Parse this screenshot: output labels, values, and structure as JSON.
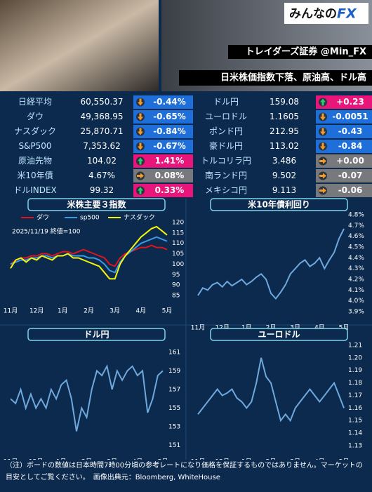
{
  "header": {
    "logo_prefix": "みんなの",
    "logo_mark": "FX",
    "account": "トレイダーズ証券 @Min_FX",
    "headline": "日米株価指数下落、原油高、ドル高"
  },
  "table": {
    "palette": {
      "up": "#e8157a",
      "down": "#1e6fd9",
      "flat": "#77797c"
    },
    "left": [
      {
        "name": "日経平均",
        "value": "60,550.37",
        "change": "-0.44%",
        "trend": "down"
      },
      {
        "name": "ダウ",
        "value": "49,368.95",
        "change": "-0.65%",
        "trend": "down"
      },
      {
        "name": "ナスダック",
        "value": "25,870.71",
        "change": "-0.84%",
        "trend": "down"
      },
      {
        "name": "S&P500",
        "value": "7,353.62",
        "change": "-0.67%",
        "trend": "down"
      },
      {
        "name": "原油先物",
        "value": "104.02",
        "change": "1.41%",
        "trend": "up"
      },
      {
        "name": "米10年債",
        "value": "4.67%",
        "change": "0.08%",
        "trend": "flat"
      },
      {
        "name": "ドルINDEX",
        "value": "99.32",
        "change": "0.33%",
        "trend": "up"
      }
    ],
    "right": [
      {
        "name": "ドル円",
        "value": "159.08",
        "change": "+0.23",
        "trend": "up"
      },
      {
        "name": "ユーロドル",
        "value": "1.1605",
        "change": "-0.0051",
        "trend": "down"
      },
      {
        "name": "ポンド円",
        "value": "212.95",
        "change": "-0.43",
        "trend": "down"
      },
      {
        "name": "豪ドル円",
        "value": "113.02",
        "change": "-0.84",
        "trend": "down"
      },
      {
        "name": "トルコリラ円",
        "value": "3.486",
        "change": "+0.00",
        "trend": "flat"
      },
      {
        "name": "南ランド円",
        "value": "9.502",
        "change": "-0.07",
        "trend": "flat"
      },
      {
        "name": "メキシコ円",
        "value": "9.113",
        "change": "-0.06",
        "trend": "flat"
      }
    ]
  },
  "chart_data": [
    {
      "type": "line",
      "title": "米株主要３指数",
      "note": "2025/11/19 終値=100",
      "categories": [
        "11月",
        null,
        null,
        null,
        null,
        "12月",
        null,
        null,
        null,
        null,
        "1月",
        null,
        null,
        null,
        null,
        "2月",
        null,
        null,
        null,
        null,
        "3月",
        null,
        null,
        null,
        null,
        "4月",
        null,
        null,
        null,
        null,
        "5月"
      ],
      "ylim": [
        82,
        124
      ],
      "yticks": [
        85,
        90,
        95,
        100,
        105,
        110,
        115,
        120
      ],
      "series": [
        {
          "name": "ダウ",
          "color": "#e0141e",
          "values": [
            100,
            102,
            103,
            103,
            104,
            104,
            105,
            105,
            104,
            105,
            106,
            106,
            105,
            106,
            107,
            106,
            105,
            104,
            103,
            100,
            99,
            103,
            105,
            106,
            107,
            108,
            108,
            109,
            108,
            108,
            107
          ]
        },
        {
          "name": "sp500",
          "color": "#3b9ae8",
          "values": [
            100,
            101,
            102,
            102,
            103,
            103,
            104,
            104,
            103,
            104,
            104,
            105,
            104,
            104,
            104,
            103,
            103,
            102,
            100,
            97,
            96,
            101,
            104,
            106,
            108,
            110,
            111,
            112,
            113,
            112,
            111
          ]
        },
        {
          "name": "ナスダック",
          "color": "#f5f50a",
          "values": [
            98,
            102,
            103,
            101,
            103,
            102,
            104,
            103,
            102,
            104,
            104,
            105,
            103,
            103,
            102,
            101,
            100,
            99,
            96,
            93,
            93,
            100,
            104,
            107,
            110,
            113,
            115,
            117,
            118,
            116,
            114
          ]
        }
      ]
    },
    {
      "type": "line",
      "title": "米10年債利回り",
      "categories": [
        "11月",
        null,
        null,
        null,
        null,
        "12月",
        null,
        null,
        null,
        null,
        "1月",
        null,
        null,
        null,
        null,
        "2月",
        null,
        null,
        null,
        null,
        "3月",
        null,
        null,
        null,
        null,
        "4月",
        null,
        null,
        null,
        null,
        "5月"
      ],
      "ylim": [
        3.86,
        4.84
      ],
      "yticks": [
        {
          "value": 3.9,
          "label": "3.9%"
        },
        {
          "value": 4.0,
          "label": "4.0%"
        },
        {
          "value": 4.1,
          "label": "4.1%"
        },
        {
          "value": 4.2,
          "label": "4.2%"
        },
        {
          "value": 4.3,
          "label": "4.3%"
        },
        {
          "value": 4.4,
          "label": "4.4%"
        },
        {
          "value": 4.5,
          "label": "4.5%"
        },
        {
          "value": 4.6,
          "label": "4.6%"
        },
        {
          "value": 4.7,
          "label": "4.7%"
        },
        {
          "value": 4.8,
          "label": "4.8%"
        }
      ],
      "series": [
        {
          "name": "米10年債",
          "color": "#6fa8dc",
          "values": [
            4.05,
            4.12,
            4.1,
            4.15,
            4.17,
            4.13,
            4.18,
            4.14,
            4.17,
            4.2,
            4.15,
            4.18,
            4.22,
            4.25,
            4.2,
            4.07,
            4.02,
            4.08,
            4.15,
            4.25,
            4.3,
            4.35,
            4.38,
            4.32,
            4.35,
            4.4,
            4.3,
            4.38,
            4.45,
            4.58,
            4.67
          ]
        }
      ]
    },
    {
      "type": "line",
      "title": "ドル円",
      "categories": [
        "11月",
        null,
        null,
        null,
        null,
        "12月",
        null,
        null,
        null,
        null,
        "1月",
        null,
        null,
        null,
        null,
        "2月",
        null,
        null,
        null,
        null,
        "3月",
        null,
        null,
        null,
        null,
        "4月",
        null,
        null,
        null,
        null,
        "5月"
      ],
      "ylim": [
        150.2,
        161.9
      ],
      "yticks": [
        151,
        153,
        155,
        157,
        159,
        161
      ],
      "series": [
        {
          "name": "ドル円",
          "color": "#6fa8dc",
          "values": [
            156,
            155.5,
            157,
            155,
            156.5,
            155,
            156,
            155,
            157,
            156,
            157.5,
            158,
            156,
            152.5,
            155,
            154,
            157,
            159,
            158.5,
            159.5,
            157,
            159,
            158,
            159,
            159.5,
            158.5,
            159,
            154.5,
            156,
            158.5,
            159
          ]
        }
      ]
    },
    {
      "type": "line",
      "title": "ユーロドル",
      "categories": [
        "11月",
        null,
        null,
        null,
        null,
        "12月",
        null,
        null,
        null,
        null,
        "1月",
        null,
        null,
        null,
        null,
        "2月",
        null,
        null,
        null,
        null,
        "3月",
        null,
        null,
        null,
        null,
        "4月",
        null,
        null,
        null,
        null,
        "5月"
      ],
      "ylim": [
        1.1244,
        1.2139
      ],
      "yticks": [
        1.13,
        1.14,
        1.15,
        1.16,
        1.17,
        1.18,
        1.19,
        {
          "value": 1.2,
          "label": "1.20"
        },
        1.21
      ],
      "series": [
        {
          "name": "ユーロドル",
          "color": "#6fa8dc",
          "values": [
            1.155,
            1.16,
            1.165,
            1.17,
            1.175,
            1.17,
            1.172,
            1.175,
            1.168,
            1.165,
            1.16,
            1.165,
            1.18,
            1.2,
            1.185,
            1.18,
            1.165,
            1.15,
            1.155,
            1.15,
            1.16,
            1.165,
            1.17,
            1.175,
            1.17,
            1.165,
            1.17,
            1.175,
            1.18,
            1.17,
            1.16
          ]
        }
      ]
    }
  ],
  "footer": {
    "note": "（注）ボードの数値は日本時間7時00分頃の参考レートになり価格を保証するものではありません。マーケットの目安としてご覧ください。　画像出典元：Bloomberg, WhiteHouse"
  }
}
